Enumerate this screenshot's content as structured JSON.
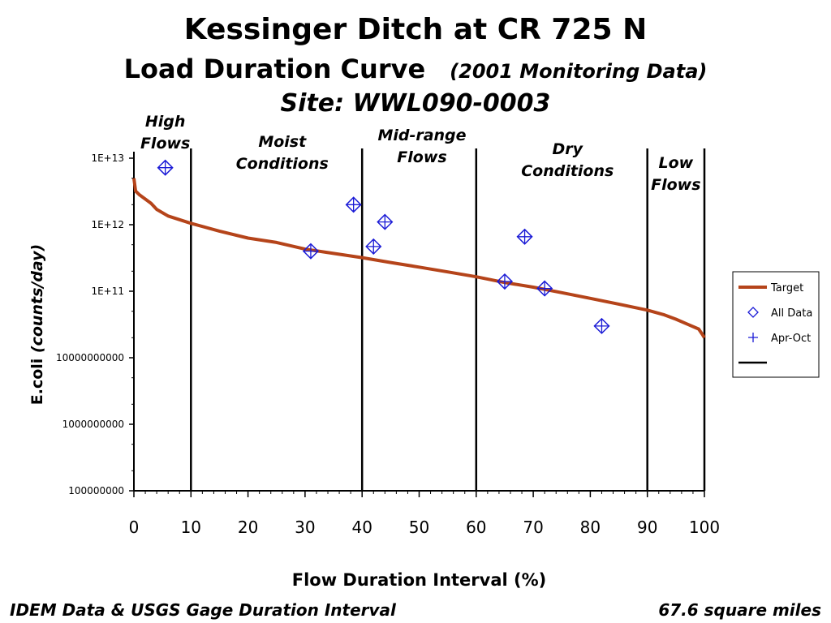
{
  "title": {
    "line1": "Kessinger Ditch at CR 725 N",
    "line2": "Load Duration Curve",
    "line2_sub": "(2001 Monitoring Data)",
    "line3": "Site:  WWL090-0003"
  },
  "footer": {
    "left": "IDEM Data & USGS Gage Duration Interval",
    "right": "67.6 square miles"
  },
  "chart_data": {
    "type": "line",
    "xlabel": "Flow Duration Interval (%)",
    "ylabel_plain": "E.coli ",
    "ylabel_italic": "(counts/day)",
    "xlim": [
      0,
      100
    ],
    "ylim": [
      100000000,
      10000000000000
    ],
    "yscale": "log",
    "x_ticks": [
      "0",
      "10",
      "20",
      "30",
      "40",
      "50",
      "60",
      "70",
      "80",
      "90",
      "100"
    ],
    "y_ticks": [
      {
        "value": 10000000000000,
        "label": "1E+13"
      },
      {
        "value": 1000000000000,
        "label": "1E+12"
      },
      {
        "value": 100000000000,
        "label": "1E+11"
      },
      {
        "value": 10000000000,
        "label": "10000000000"
      },
      {
        "value": 1000000000,
        "label": "1000000000"
      },
      {
        "value": 100000000,
        "label": "100000000"
      }
    ],
    "zone_dividers": [
      10,
      40,
      60,
      90,
      100
    ],
    "zones": [
      {
        "lines": [
          "High",
          "Flows"
        ],
        "x": 5.5
      },
      {
        "lines": [
          "Moist",
          "Conditions"
        ],
        "x": 26
      },
      {
        "lines": [
          "Mid-range",
          "Flows"
        ],
        "x": 50.5
      },
      {
        "lines": [
          "Dry",
          "Conditions"
        ],
        "x": 76
      },
      {
        "lines": [
          "Low",
          "Flows"
        ],
        "x": 95
      }
    ],
    "series": [
      {
        "name": "Target",
        "color": "#b5441a",
        "x": [
          0,
          0.3,
          1,
          3,
          4,
          6,
          10,
          15,
          20,
          25,
          30,
          35,
          40,
          45,
          50,
          55,
          60,
          65,
          70,
          75,
          80,
          85,
          90,
          93,
          95,
          97,
          99,
          99.7,
          100
        ],
        "y": [
          5000000000000,
          3200000000000,
          2800000000000,
          2100000000000,
          1700000000000,
          1350000000000,
          1050000000000,
          800000000000,
          630000000000,
          540000000000,
          430000000000,
          370000000000,
          320000000000,
          270000000000,
          230000000000,
          195000000000,
          165000000000,
          135000000000,
          115000000000,
          95000000000,
          78000000000,
          64000000000,
          52000000000,
          44000000000,
          38000000000,
          32000000000,
          27000000000,
          22000000000,
          20000000000
        ]
      },
      {
        "name": "All Data",
        "color": "#1a1ad6",
        "marker": "diamond",
        "x": [
          5.5,
          31,
          38.5,
          42,
          44,
          65,
          68.5,
          72,
          82
        ],
        "y": [
          7200000000000,
          400000000000,
          2000000000000,
          470000000000,
          1100000000000,
          140000000000,
          660000000000,
          110000000000,
          30000000000
        ]
      },
      {
        "name": "Apr-Oct",
        "color": "#1a1ad6",
        "marker": "plus",
        "x": [
          5.5,
          31,
          38.5,
          42,
          44,
          65,
          68.5,
          72,
          82
        ],
        "y": [
          7200000000000,
          400000000000,
          2000000000000,
          470000000000,
          1100000000000,
          140000000000,
          660000000000,
          110000000000,
          30000000000
        ]
      }
    ],
    "legend": {
      "placement": "right",
      "entries": [
        {
          "label": "Target",
          "symbol": "line",
          "color": "#b5441a"
        },
        {
          "label": "All Data",
          "symbol": "diamond",
          "color": "#1a1ad6"
        },
        {
          "label": "Apr-Oct",
          "symbol": "plus",
          "color": "#1a1ad6"
        },
        {
          "label": "",
          "symbol": "line",
          "color": "#000000"
        }
      ]
    }
  }
}
